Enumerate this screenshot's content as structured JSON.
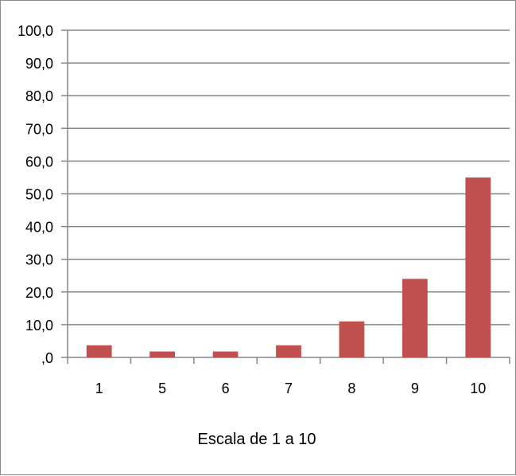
{
  "chart_data": {
    "type": "bar",
    "categories": [
      "1",
      "5",
      "6",
      "7",
      "8",
      "9",
      "10"
    ],
    "values": [
      3.7,
      1.8,
      1.8,
      3.7,
      11.0,
      24.0,
      55.0
    ],
    "xlabel": "Escala de 1 a 10",
    "ylabel": "",
    "ylim": [
      0,
      100
    ],
    "yticks": [
      ",0",
      "10,0",
      "20,0",
      "30,0",
      "40,0",
      "50,0",
      "60,0",
      "70,0",
      "80,0",
      "90,0",
      "100,0"
    ],
    "grid": true,
    "legend": "none",
    "bar_color": "#c0504d",
    "grid_color": "#868686"
  }
}
